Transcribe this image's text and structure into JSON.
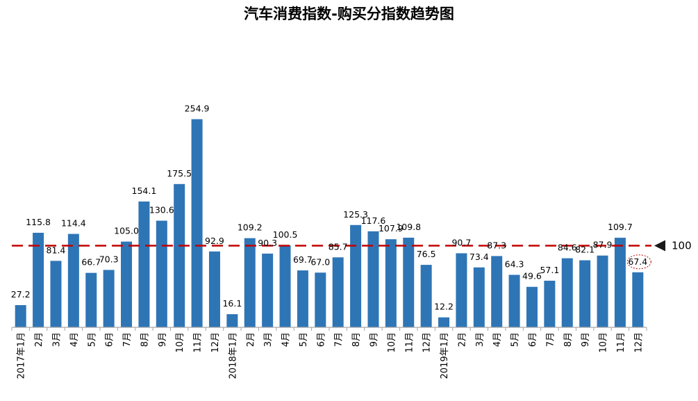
{
  "chart_data": {
    "type": "bar",
    "title": "汽车消费指数-购买分指数趋势图",
    "xlabel": "",
    "ylabel": "",
    "ylim": [
      0,
      260
    ],
    "bar_color": "#2e75b6",
    "reference_line": {
      "value": 100,
      "label": "100",
      "color": "#c00000"
    },
    "highlight": {
      "index": 35,
      "color": "#c00000"
    },
    "categories": [
      "2017年1月",
      "2月",
      "3月",
      "4月",
      "5月",
      "6月",
      "7月",
      "8月",
      "9月",
      "10月",
      "11月",
      "12月",
      "2018年1月",
      "2月",
      "3月",
      "4月",
      "5月",
      "6月",
      "7月",
      "8月",
      "9月",
      "10月",
      "11月",
      "12月",
      "2019年1月",
      "2月",
      "3月",
      "4月",
      "5月",
      "6月",
      "7月",
      "8月",
      "9月",
      "10月",
      "11月",
      "12月"
    ],
    "values": [
      27.2,
      115.8,
      81.4,
      114.4,
      66.7,
      70.3,
      105.0,
      154.1,
      130.6,
      175.5,
      254.9,
      92.9,
      16.1,
      109.2,
      90.3,
      100.5,
      69.7,
      67.0,
      85.7,
      125.3,
      117.6,
      107.9,
      109.8,
      76.5,
      12.2,
      90.7,
      73.4,
      87.3,
      64.3,
      49.6,
      57.1,
      84.6,
      82.1,
      87.9,
      109.7,
      67.4
    ],
    "value_labels": [
      "27.2",
      "115.8",
      "81.4",
      "114.4",
      "66.7",
      "70.3",
      "105.0",
      "154.1",
      "130.6",
      "175.5",
      "254.9",
      "92.9",
      "16.1",
      "109.2",
      "90.3",
      "100.5",
      "69.7",
      "67.0",
      "85.7",
      "125.3",
      "117.6",
      "107.9",
      "109.8",
      "76.5",
      "12.2",
      "90.7",
      "73.4",
      "87.3",
      "64.3",
      "49.6",
      "57.1",
      "84.6",
      "82.1",
      "87.9",
      "109.7",
      "67.4"
    ]
  }
}
